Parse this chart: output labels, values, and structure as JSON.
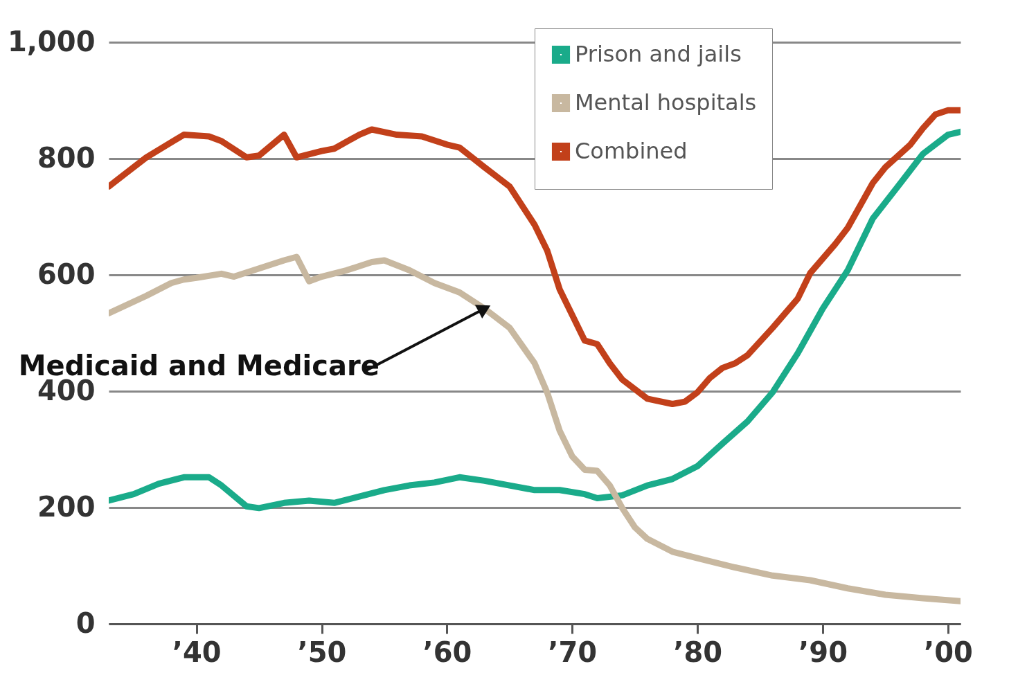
{
  "chart_data": {
    "type": "line",
    "legend": "top right",
    "grid": "y",
    "line_style": "solid",
    "xlim": [
      1933,
      2001
    ],
    "ylim": [
      0,
      1000
    ],
    "xticks": [
      {
        "value": 1940,
        "label": "’40"
      },
      {
        "value": 1950,
        "label": "’50"
      },
      {
        "value": 1960,
        "label": "’60"
      },
      {
        "value": 1970,
        "label": "’70"
      },
      {
        "value": 1980,
        "label": "’80"
      },
      {
        "value": 1990,
        "label": "’90"
      },
      {
        "value": 2000,
        "label": "’00"
      }
    ],
    "yticks": [
      0,
      200,
      400,
      600,
      800,
      {
        "value": 1000,
        "label": "1,000"
      }
    ],
    "annotations": [
      {
        "text": "Medicaid and Medicare",
        "x": 1963,
        "y": 542
      }
    ],
    "series": [
      {
        "name": "Prison and jails",
        "color": "#1aab8a",
        "x": [
          1933,
          1935,
          1937,
          1939,
          1941,
          1942,
          1944,
          1945,
          1947,
          1949,
          1951,
          1953,
          1955,
          1957,
          1959,
          1961,
          1963,
          1965,
          1967,
          1969,
          1971,
          1972,
          1974,
          1976,
          1978,
          1980,
          1982,
          1984,
          1986,
          1988,
          1990,
          1992,
          1994,
          1996,
          1998,
          2000,
          2001
        ],
        "values": [
          212,
          223,
          241,
          252,
          252,
          238,
          202,
          199,
          208,
          212,
          208,
          219,
          230,
          238,
          243,
          252,
          246,
          238,
          230,
          230,
          223,
          216,
          221,
          238,
          249,
          271,
          310,
          348,
          398,
          465,
          542,
          608,
          697,
          752,
          808,
          841,
          846
        ]
      },
      {
        "name": "Mental hospitals",
        "color": "#c8b8a0",
        "x": [
          1933,
          1936,
          1938,
          1939,
          1940,
          1942,
          1943,
          1945,
          1947,
          1948,
          1949,
          1950,
          1952,
          1954,
          1955,
          1957,
          1959,
          1961,
          1963,
          1965,
          1967,
          1968,
          1969,
          1970,
          1971,
          1972,
          1973,
          1974,
          1975,
          1976,
          1978,
          1980,
          1983,
          1986,
          1989,
          1992,
          1995,
          1998,
          2001
        ],
        "values": [
          534,
          564,
          586,
          592,
          595,
          602,
          597,
          611,
          625,
          631,
          589,
          597,
          608,
          622,
          625,
          608,
          586,
          570,
          542,
          509,
          448,
          398,
          332,
          288,
          265,
          263,
          238,
          199,
          166,
          146,
          124,
          113,
          97,
          83,
          75,
          61,
          50,
          44,
          39
        ]
      },
      {
        "name": "Combined",
        "color": "#c2401a",
        "x": [
          1933,
          1936,
          1939,
          1941,
          1942,
          1944,
          1945,
          1947,
          1948,
          1950,
          1951,
          1953,
          1954,
          1956,
          1958,
          1960,
          1961,
          1963,
          1965,
          1967,
          1968,
          1969,
          1970,
          1971,
          1972,
          1973,
          1974,
          1976,
          1978,
          1979,
          1980,
          1981,
          1982,
          1983,
          1984,
          1986,
          1988,
          1989,
          1991,
          1992,
          1994,
          1995,
          1997,
          1998,
          1999,
          2000,
          2001
        ],
        "values": [
          752,
          802,
          841,
          838,
          830,
          802,
          805,
          841,
          802,
          813,
          817,
          841,
          850,
          841,
          838,
          824,
          819,
          785,
          752,
          686,
          642,
          575,
          531,
          487,
          481,
          448,
          420,
          387,
          378,
          382,
          398,
          423,
          440,
          448,
          462,
          509,
          559,
          603,
          653,
          681,
          758,
          785,
          824,
          852,
          876,
          883,
          883
        ]
      }
    ]
  }
}
